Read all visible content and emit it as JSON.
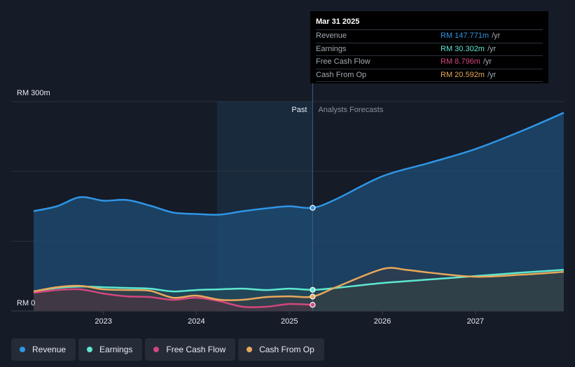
{
  "colors": {
    "revenue": "#2f95e6",
    "earnings": "#5ee8cf",
    "free_cash_flow": "#d2477e",
    "cash_from_op": "#e8a85b",
    "background": "#151b27",
    "past_shade": "#1d3650"
  },
  "tooltip": {
    "date": "Mar 31 2025",
    "rows": [
      {
        "label": "Revenue",
        "value": "RM 147.771m",
        "unit": "/yr",
        "color": "#2f95e6"
      },
      {
        "label": "Earnings",
        "value": "RM 30.302m",
        "unit": "/yr",
        "color": "#5ee8cf"
      },
      {
        "label": "Free Cash Flow",
        "value": "RM 8.796m",
        "unit": "/yr",
        "color": "#d2477e"
      },
      {
        "label": "Cash From Op",
        "value": "RM 20.592m",
        "unit": "/yr",
        "color": "#e8a85b"
      }
    ]
  },
  "legend": [
    {
      "label": "Revenue",
      "color": "#2f95e6"
    },
    {
      "label": "Earnings",
      "color": "#5ee8cf"
    },
    {
      "label": "Free Cash Flow",
      "color": "#d2477e"
    },
    {
      "label": "Cash From Op",
      "color": "#e8a85b"
    }
  ],
  "chart_data": {
    "type": "line",
    "title": "",
    "ylabel_top": "RM 300m",
    "ylabel_bottom": "RM 0",
    "ylim": [
      0,
      300
    ],
    "xlim": [
      2022.25,
      2027.95
    ],
    "x_ticks": [
      2023,
      2024,
      2025,
      2026,
      2027
    ],
    "x_tick_labels": [
      "2023",
      "2024",
      "2025",
      "2026",
      "2027"
    ],
    "divider_x": 2025.25,
    "past_label": "Past",
    "forecast_label": "Analysts Forecasts",
    "series": [
      {
        "name": "Revenue",
        "color": "#2f95e6",
        "points": [
          [
            2022.25,
            143
          ],
          [
            2022.5,
            150
          ],
          [
            2022.75,
            163
          ],
          [
            2023.0,
            158
          ],
          [
            2023.25,
            159
          ],
          [
            2023.5,
            151
          ],
          [
            2023.75,
            141
          ],
          [
            2024.0,
            139
          ],
          [
            2024.25,
            138
          ],
          [
            2024.5,
            143
          ],
          [
            2024.75,
            147
          ],
          [
            2025.0,
            150
          ],
          [
            2025.25,
            147.771
          ],
          [
            2025.5,
            160
          ],
          [
            2026.0,
            193
          ],
          [
            2026.5,
            212
          ],
          [
            2027.0,
            232
          ],
          [
            2027.5,
            258
          ],
          [
            2027.95,
            284
          ]
        ]
      },
      {
        "name": "Earnings",
        "color": "#5ee8cf",
        "points": [
          [
            2022.25,
            28
          ],
          [
            2022.5,
            33
          ],
          [
            2022.75,
            35
          ],
          [
            2023.0,
            34
          ],
          [
            2023.25,
            33
          ],
          [
            2023.5,
            32
          ],
          [
            2023.75,
            28
          ],
          [
            2024.0,
            30
          ],
          [
            2024.25,
            31
          ],
          [
            2024.5,
            32
          ],
          [
            2024.75,
            30
          ],
          [
            2025.0,
            32
          ],
          [
            2025.25,
            30.302
          ],
          [
            2025.5,
            33
          ],
          [
            2026.0,
            40
          ],
          [
            2026.5,
            45
          ],
          [
            2027.0,
            50
          ],
          [
            2027.5,
            55
          ],
          [
            2027.95,
            59
          ]
        ]
      },
      {
        "name": "Free Cash Flow",
        "color": "#d2477e",
        "points": [
          [
            2022.25,
            26
          ],
          [
            2022.5,
            30
          ],
          [
            2022.75,
            31
          ],
          [
            2023.0,
            25
          ],
          [
            2023.25,
            21
          ],
          [
            2023.5,
            20
          ],
          [
            2023.75,
            16
          ],
          [
            2024.0,
            19
          ],
          [
            2024.25,
            14
          ],
          [
            2024.5,
            6
          ],
          [
            2024.75,
            6
          ],
          [
            2025.0,
            10
          ],
          [
            2025.25,
            8.796
          ]
        ]
      },
      {
        "name": "Cash From Op",
        "color": "#e8a85b",
        "points": [
          [
            2022.25,
            28
          ],
          [
            2022.5,
            34
          ],
          [
            2022.75,
            36
          ],
          [
            2023.0,
            31
          ],
          [
            2023.25,
            30
          ],
          [
            2023.5,
            29
          ],
          [
            2023.75,
            19
          ],
          [
            2024.0,
            22
          ],
          [
            2024.25,
            16
          ],
          [
            2024.5,
            16
          ],
          [
            2024.75,
            20
          ],
          [
            2025.0,
            21
          ],
          [
            2025.25,
            20.592
          ],
          [
            2025.5,
            34
          ],
          [
            2026.0,
            60
          ],
          [
            2026.25,
            59
          ],
          [
            2026.5,
            55
          ],
          [
            2027.0,
            49
          ],
          [
            2027.5,
            52
          ],
          [
            2027.95,
            56
          ]
        ]
      }
    ]
  }
}
